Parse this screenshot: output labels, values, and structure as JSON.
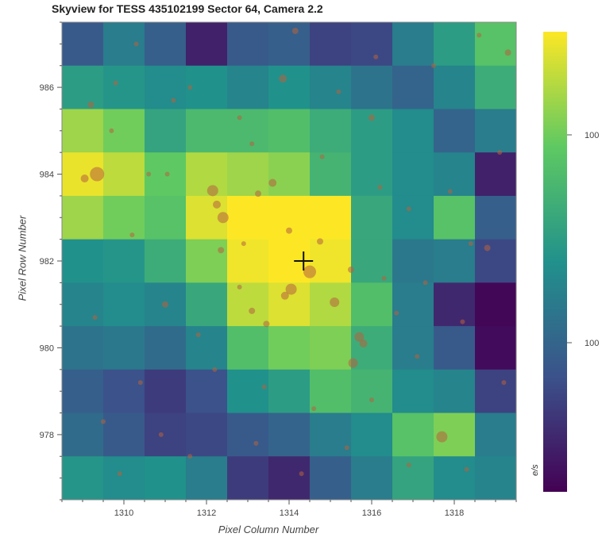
{
  "chart_data": {
    "type": "heatmap",
    "title": "Skyview for TESS 435102199 Sector 64, Camera 2.2",
    "xlabel": "Pixel Column Number",
    "ylabel": "Pixel Row Number",
    "xlim": [
      1308.5,
      1319.5
    ],
    "ylim": [
      976.5,
      987.5
    ],
    "xticks": [
      1310,
      1312,
      1314,
      1316,
      1318
    ],
    "yticks": [
      978,
      980,
      982,
      984,
      986
    ],
    "colorscale": "viridis",
    "colorbar": {
      "label": "e/s",
      "tick_labels": [
        "100",
        "100"
      ]
    },
    "columns": [
      1309,
      1310,
      1311,
      1312,
      1313,
      1314,
      1315,
      1316,
      1317,
      1318,
      1319
    ],
    "rows": [
      987,
      986,
      985,
      984,
      983,
      982,
      981,
      980,
      979,
      978,
      977
    ],
    "values": [
      [
        0.28,
        0.42,
        0.3,
        0.1,
        0.28,
        0.3,
        0.2,
        0.22,
        0.42,
        0.55,
        0.72
      ],
      [
        0.55,
        0.52,
        0.48,
        0.5,
        0.45,
        0.5,
        0.45,
        0.38,
        0.32,
        0.45,
        0.62
      ],
      [
        0.85,
        0.78,
        0.58,
        0.68,
        0.68,
        0.7,
        0.62,
        0.55,
        0.48,
        0.32,
        0.42
      ],
      [
        0.97,
        0.9,
        0.75,
        0.88,
        0.85,
        0.82,
        0.65,
        0.55,
        0.48,
        0.45,
        0.1
      ],
      [
        0.85,
        0.78,
        0.72,
        0.95,
        1.0,
        1.0,
        1.0,
        0.6,
        0.48,
        0.72,
        0.3
      ],
      [
        0.5,
        0.52,
        0.62,
        0.8,
        0.98,
        1.0,
        0.98,
        0.6,
        0.4,
        0.42,
        0.22
      ],
      [
        0.45,
        0.48,
        0.45,
        0.6,
        0.9,
        0.95,
        0.88,
        0.7,
        0.42,
        0.12,
        0.02
      ],
      [
        0.38,
        0.4,
        0.35,
        0.45,
        0.7,
        0.78,
        0.8,
        0.62,
        0.42,
        0.28,
        0.03
      ],
      [
        0.3,
        0.25,
        0.18,
        0.25,
        0.5,
        0.55,
        0.7,
        0.65,
        0.48,
        0.45,
        0.2
      ],
      [
        0.35,
        0.28,
        0.2,
        0.22,
        0.28,
        0.32,
        0.42,
        0.48,
        0.72,
        0.8,
        0.42
      ],
      [
        0.52,
        0.48,
        0.5,
        0.42,
        0.18,
        0.12,
        0.3,
        0.42,
        0.58,
        0.48,
        0.45
      ]
    ],
    "target": {
      "x": 1314.35,
      "y": 982.0,
      "marker": "crosshair"
    },
    "stars": [
      {
        "x": 1309.35,
        "y": 984.0,
        "s": 9
      },
      {
        "x": 1309.05,
        "y": 983.9,
        "s": 5
      },
      {
        "x": 1312.15,
        "y": 983.62,
        "s": 7
      },
      {
        "x": 1312.4,
        "y": 983.0,
        "s": 7
      },
      {
        "x": 1312.25,
        "y": 983.3,
        "s": 5
      },
      {
        "x": 1313.6,
        "y": 983.8,
        "s": 5
      },
      {
        "x": 1313.25,
        "y": 983.55,
        "s": 4
      },
      {
        "x": 1314.5,
        "y": 981.75,
        "s": 8
      },
      {
        "x": 1314.05,
        "y": 981.35,
        "s": 7
      },
      {
        "x": 1313.9,
        "y": 981.2,
        "s": 5
      },
      {
        "x": 1315.1,
        "y": 981.05,
        "s": 6
      },
      {
        "x": 1314.75,
        "y": 982.45,
        "s": 4
      },
      {
        "x": 1315.7,
        "y": 980.25,
        "s": 6
      },
      {
        "x": 1315.8,
        "y": 980.1,
        "s": 5
      },
      {
        "x": 1315.55,
        "y": 979.65,
        "s": 6
      },
      {
        "x": 1316.0,
        "y": 985.3,
        "s": 4
      },
      {
        "x": 1317.7,
        "y": 977.95,
        "s": 7
      },
      {
        "x": 1313.85,
        "y": 986.2,
        "s": 5
      },
      {
        "x": 1314.15,
        "y": 987.3,
        "s": 4
      },
      {
        "x": 1309.2,
        "y": 985.6,
        "s": 4
      },
      {
        "x": 1311.6,
        "y": 986.0,
        "s": 3
      },
      {
        "x": 1309.7,
        "y": 985.0,
        "s": 3
      },
      {
        "x": 1310.6,
        "y": 984.0,
        "s": 3
      },
      {
        "x": 1311.05,
        "y": 984.0,
        "s": 3
      },
      {
        "x": 1312.35,
        "y": 982.25,
        "s": 4
      },
      {
        "x": 1311.0,
        "y": 981.0,
        "s": 4
      },
      {
        "x": 1313.1,
        "y": 980.85,
        "s": 4
      },
      {
        "x": 1313.45,
        "y": 980.55,
        "s": 4
      },
      {
        "x": 1312.9,
        "y": 982.4,
        "s": 3
      },
      {
        "x": 1314.0,
        "y": 982.7,
        "s": 4
      },
      {
        "x": 1315.5,
        "y": 981.8,
        "s": 4
      },
      {
        "x": 1316.3,
        "y": 981.6,
        "s": 3
      },
      {
        "x": 1316.6,
        "y": 980.8,
        "s": 3
      },
      {
        "x": 1317.3,
        "y": 981.5,
        "s": 3
      },
      {
        "x": 1318.2,
        "y": 980.6,
        "s": 3
      },
      {
        "x": 1318.8,
        "y": 982.3,
        "s": 4
      },
      {
        "x": 1319.1,
        "y": 984.5,
        "s": 3
      },
      {
        "x": 1319.3,
        "y": 986.8,
        "s": 4
      },
      {
        "x": 1318.6,
        "y": 987.2,
        "s": 3
      },
      {
        "x": 1317.5,
        "y": 986.5,
        "s": 3
      },
      {
        "x": 1316.1,
        "y": 986.7,
        "s": 3
      },
      {
        "x": 1315.2,
        "y": 985.9,
        "s": 3
      },
      {
        "x": 1312.8,
        "y": 985.3,
        "s": 3
      },
      {
        "x": 1311.2,
        "y": 985.7,
        "s": 3
      },
      {
        "x": 1310.3,
        "y": 987.0,
        "s": 3
      },
      {
        "x": 1309.8,
        "y": 986.1,
        "s": 3
      },
      {
        "x": 1310.4,
        "y": 979.2,
        "s": 3
      },
      {
        "x": 1309.5,
        "y": 978.3,
        "s": 3
      },
      {
        "x": 1310.9,
        "y": 978.0,
        "s": 3
      },
      {
        "x": 1309.9,
        "y": 977.1,
        "s": 3
      },
      {
        "x": 1311.6,
        "y": 977.5,
        "s": 3
      },
      {
        "x": 1312.2,
        "y": 979.5,
        "s": 3
      },
      {
        "x": 1313.4,
        "y": 979.1,
        "s": 3
      },
      {
        "x": 1314.6,
        "y": 978.6,
        "s": 3
      },
      {
        "x": 1316.0,
        "y": 978.8,
        "s": 3
      },
      {
        "x": 1316.9,
        "y": 977.3,
        "s": 3
      },
      {
        "x": 1318.3,
        "y": 977.2,
        "s": 3
      },
      {
        "x": 1319.2,
        "y": 979.2,
        "s": 3
      },
      {
        "x": 1317.1,
        "y": 979.8,
        "s": 3
      },
      {
        "x": 1316.9,
        "y": 983.2,
        "s": 3
      },
      {
        "x": 1316.2,
        "y": 983.7,
        "s": 3
      },
      {
        "x": 1317.9,
        "y": 983.6,
        "s": 3
      },
      {
        "x": 1318.4,
        "y": 982.4,
        "s": 3
      },
      {
        "x": 1314.8,
        "y": 984.4,
        "s": 3
      },
      {
        "x": 1313.1,
        "y": 984.7,
        "s": 3
      },
      {
        "x": 1312.8,
        "y": 981.4,
        "s": 3
      },
      {
        "x": 1310.2,
        "y": 982.6,
        "s": 3
      },
      {
        "x": 1309.3,
        "y": 980.7,
        "s": 3
      },
      {
        "x": 1311.8,
        "y": 980.3,
        "s": 3
      },
      {
        "x": 1313.2,
        "y": 977.8,
        "s": 3
      },
      {
        "x": 1314.3,
        "y": 977.1,
        "s": 3
      },
      {
        "x": 1315.4,
        "y": 977.7,
        "s": 3
      }
    ]
  }
}
